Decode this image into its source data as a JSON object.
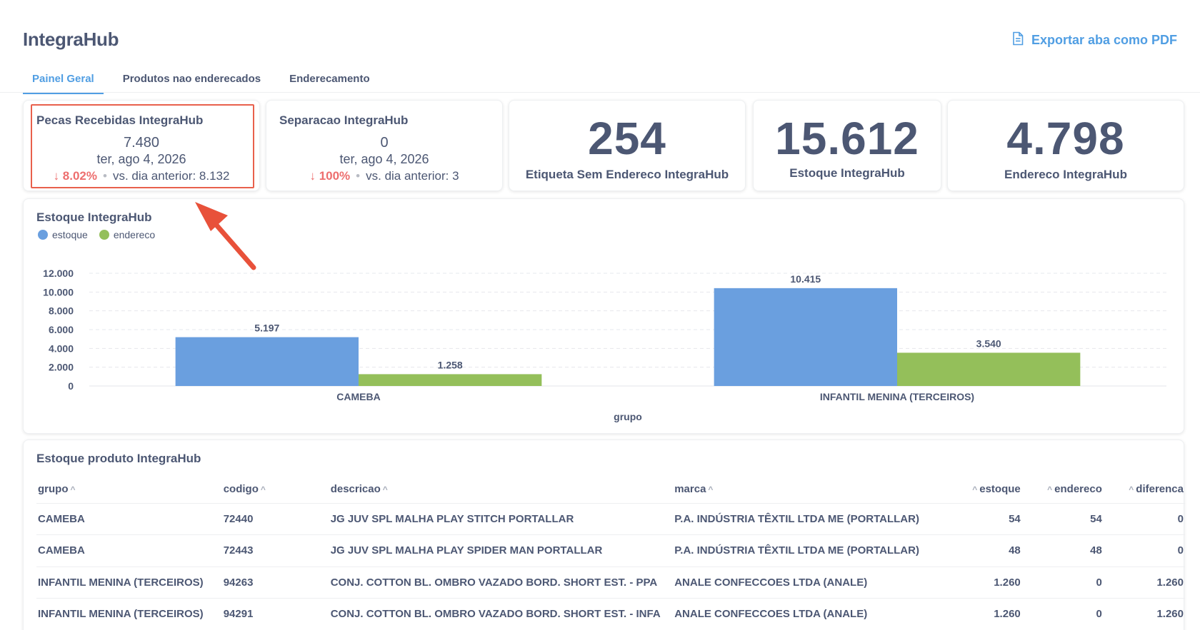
{
  "app": {
    "title": "IntegraHub"
  },
  "export": {
    "label": "Exportar aba como PDF",
    "icon": "document-icon"
  },
  "tabs": [
    {
      "label": "Painel Geral",
      "active": true
    },
    {
      "label": "Produtos nao enderecados",
      "active": false
    },
    {
      "label": "Enderecamento",
      "active": false
    }
  ],
  "kpis": [
    {
      "title": "Pecas Recebidas IntegraHub",
      "value": "7.480",
      "date": "ter, ago 4, 2026",
      "change": "8.02%",
      "previous": "vs. dia anterior: 8.132",
      "direction": "down"
    },
    {
      "title": "Separacao IntegraHub",
      "value": "0",
      "date": "ter, ago 4, 2026",
      "change": "100%",
      "previous": "vs. dia anterior: 3",
      "direction": "down"
    }
  ],
  "big_numbers": [
    {
      "value": "254",
      "label": "Etiqueta Sem Endereco IntegraHub"
    },
    {
      "value": "15.612",
      "label": "Estoque IntegraHub"
    },
    {
      "value": "4.798",
      "label": "Endereco IntegraHub"
    }
  ],
  "chart_data": {
    "type": "bar",
    "title": "Estoque IntegraHub",
    "categories": [
      "CAMEBA",
      "INFANTIL MENINA (TERCEIROS)"
    ],
    "series": [
      {
        "name": "estoque",
        "color": "#6a9fdf",
        "values": [
          5197,
          10415
        ],
        "labels": [
          "5.197",
          "10.415"
        ]
      },
      {
        "name": "endereco",
        "color": "#94bf5a",
        "values": [
          1258,
          3540
        ],
        "labels": [
          "1.258",
          "3.540"
        ]
      }
    ],
    "xlabel": "grupo",
    "ylabel": "",
    "ylim": [
      0,
      12000
    ],
    "yticks": [
      {
        "value": 0,
        "label": "0"
      },
      {
        "value": 2000,
        "label": "2.000"
      },
      {
        "value": 4000,
        "label": "4.000"
      },
      {
        "value": 6000,
        "label": "6.000"
      },
      {
        "value": 8000,
        "label": "8.000"
      },
      {
        "value": 10000,
        "label": "10.000"
      },
      {
        "value": 12000,
        "label": "12.000"
      }
    ],
    "grid": true,
    "legend_position": "top-left"
  },
  "table": {
    "title": "Estoque produto IntegraHub",
    "columns": [
      "grupo",
      "codigo",
      "descricao",
      "marca",
      "estoque",
      "endereco",
      "diferenca"
    ],
    "rows": [
      [
        "CAMEBA",
        "72440",
        "JG JUV SPL MALHA PLAY STITCH PORTALLAR",
        "P.A. INDÚSTRIA TÊXTIL LTDA ME (PORTALLAR)",
        "54",
        "54",
        "0"
      ],
      [
        "CAMEBA",
        "72443",
        "JG JUV SPL MALHA PLAY SPIDER MAN PORTALLAR",
        "P.A. INDÚSTRIA TÊXTIL LTDA ME (PORTALLAR)",
        "48",
        "48",
        "0"
      ],
      [
        "INFANTIL MENINA (TERCEIROS)",
        "94263",
        "CONJ. COTTON BL. OMBRO VAZADO BORD. SHORT EST. - PPA",
        "ANALE CONFECCOES LTDA (ANALE)",
        "1.260",
        "0",
        "1.260"
      ],
      [
        "INFANTIL MENINA (TERCEIROS)",
        "94291",
        "CONJ. COTTON BL. OMBRO VAZADO BORD. SHORT EST. - INFA",
        "ANALE CONFECCOES LTDA (ANALE)",
        "1.260",
        "0",
        "1.260"
      ]
    ]
  }
}
